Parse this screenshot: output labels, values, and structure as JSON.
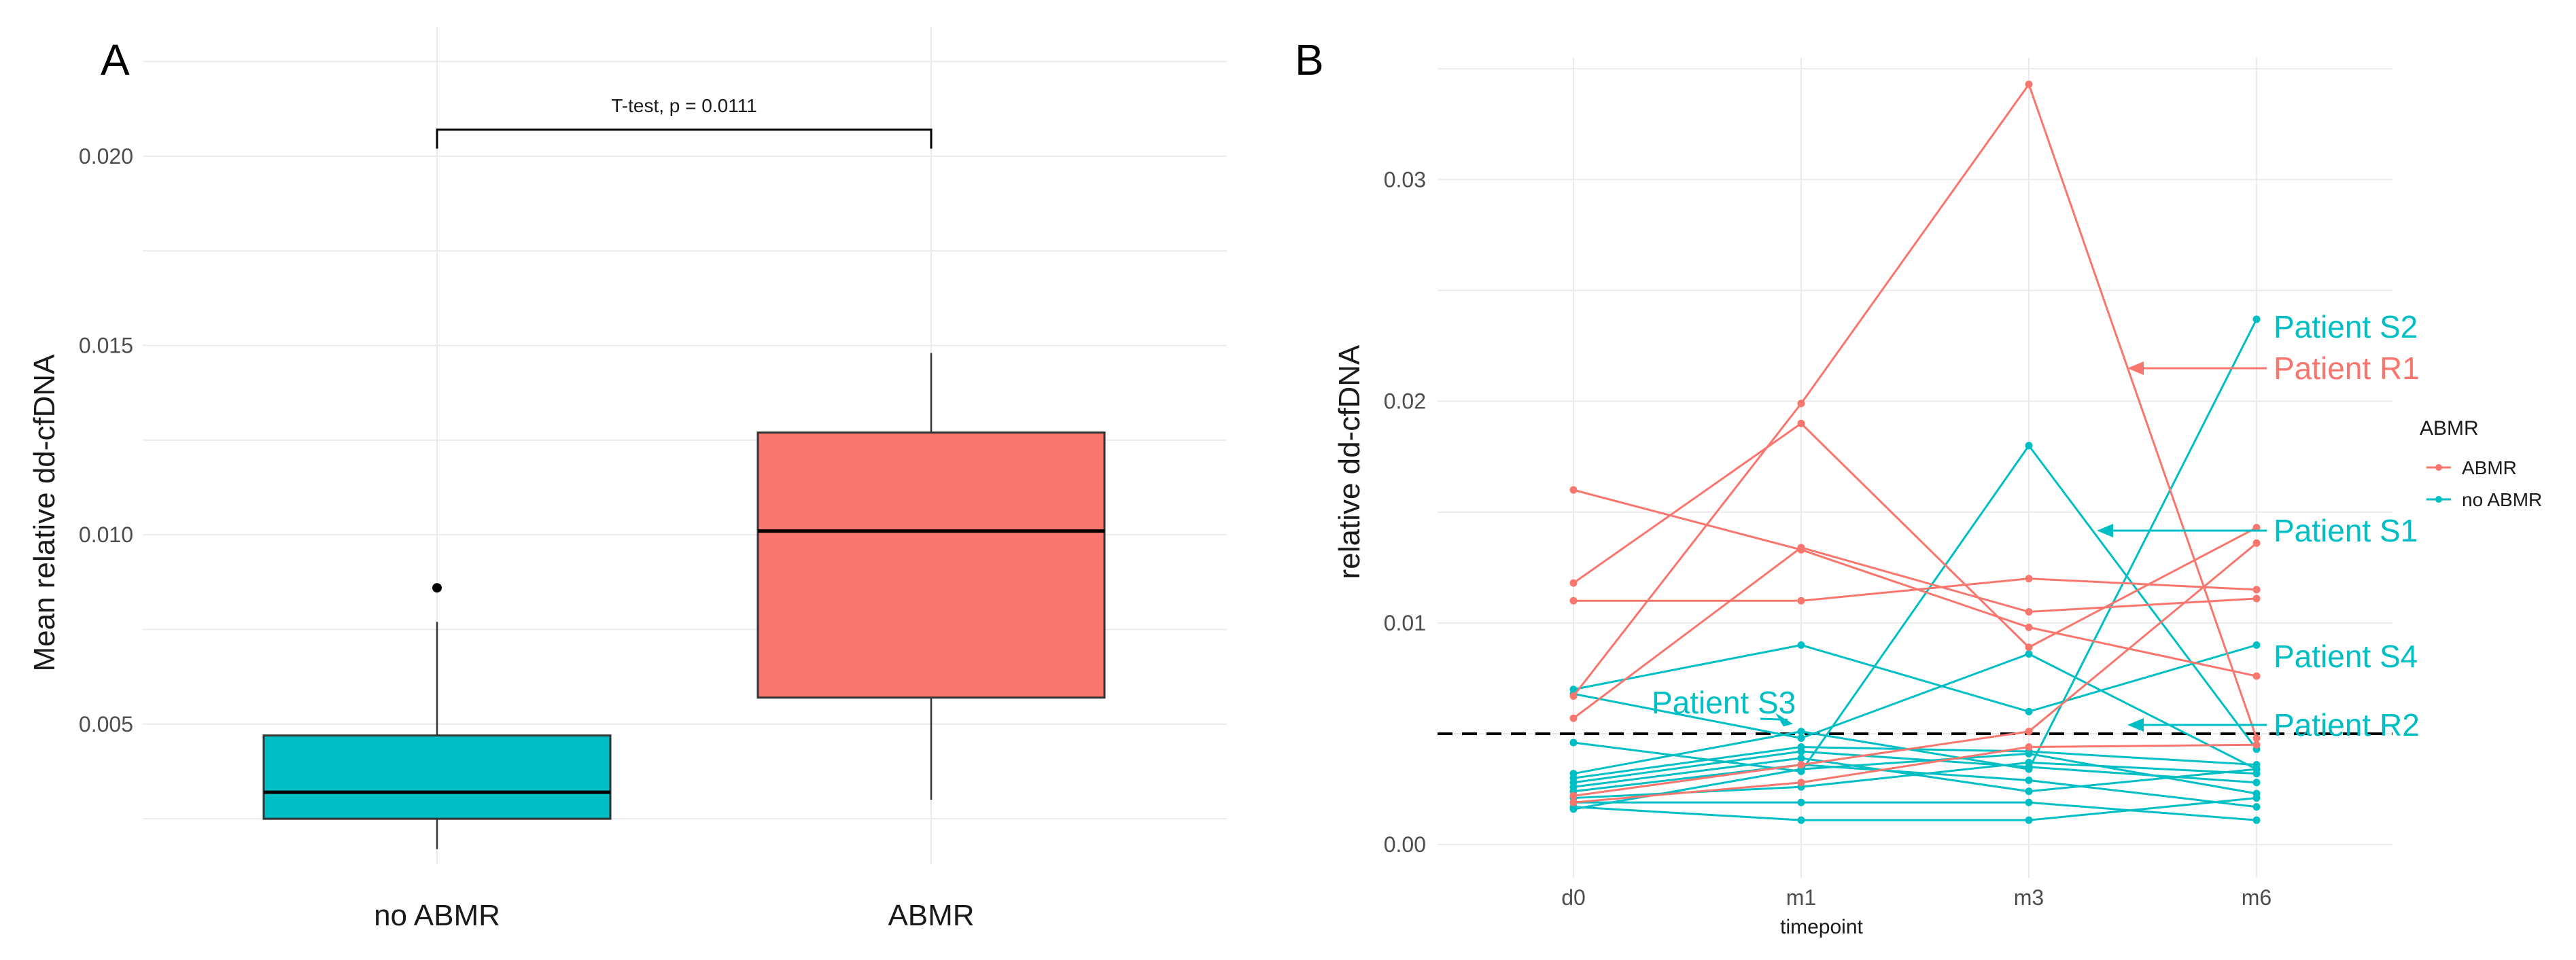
{
  "colors": {
    "abmr": "#F8766D",
    "no_abmr": "#00BFC4",
    "dark": "#000000"
  },
  "chart_data": [
    {
      "panel": "A",
      "type": "box",
      "ylabel": "Mean relative dd-cfDNA",
      "yticks": [
        0.005,
        0.01,
        0.015,
        0.02
      ],
      "ytick_labels": [
        "0.005",
        "0.010",
        "0.015",
        "0.020"
      ],
      "ylim": [
        0.0013,
        0.0226
      ],
      "categories": [
        "no ABMR",
        "ABMR"
      ],
      "boxes": [
        {
          "name": "no ABMR",
          "color": "#00BFC4",
          "whisker_low": 0.0017,
          "q1": 0.0025,
          "median": 0.0032,
          "q3": 0.0047,
          "whisker_high": 0.0077,
          "outliers": [
            0.0086
          ]
        },
        {
          "name": "ABMR",
          "color": "#F8766D",
          "whisker_low": 0.003,
          "q1": 0.0057,
          "median": 0.0101,
          "q3": 0.0127,
          "whisker_high": 0.0148,
          "outliers": []
        }
      ],
      "comparison": {
        "label": "T-test, p = 0.0111",
        "y": 0.0207,
        "tip_low": 0.0202
      }
    },
    {
      "panel": "B",
      "type": "line",
      "xlabel": "timepoint",
      "ylabel": "relative dd-cfDNA",
      "categories": [
        "d0",
        "m1",
        "m3",
        "m6"
      ],
      "yticks": [
        0,
        0.01,
        0.02,
        0.03
      ],
      "ytick_labels": [
        "0.00",
        "0.01",
        "0.02",
        "0.03"
      ],
      "ylim": [
        -0.0015,
        0.0355
      ],
      "threshold": 0.005,
      "legend": {
        "title": "ABMR",
        "position": "right",
        "entries": [
          {
            "name": "ABMR",
            "color": "#F8766D"
          },
          {
            "name": "no ABMR",
            "color": "#00BFC4"
          }
        ]
      },
      "series": [
        {
          "group": "ABMR",
          "values": [
            0.016,
            0.0133,
            0.0098,
            0.0076
          ]
        },
        {
          "group": "ABMR",
          "values": [
            0.0118,
            0.019,
            0.0089,
            0.0143
          ]
        },
        {
          "group": "ABMR",
          "values": [
            0.011,
            0.011,
            0.012,
            0.0115
          ]
        },
        {
          "group": "ABMR",
          "values": [
            0.0067,
            0.0199,
            0.0343,
            0.0048
          ]
        },
        {
          "group": "ABMR",
          "values": [
            0.0057,
            0.0134,
            0.0105,
            0.0111
          ]
        },
        {
          "group": "ABMR",
          "values": [
            0.0022,
            0.0036,
            0.0051,
            0.0136
          ]
        },
        {
          "group": "ABMR",
          "values": [
            0.0019,
            0.0028,
            0.0044,
            0.0045
          ]
        },
        {
          "group": "no ABMR",
          "values": [
            0.007,
            0.009,
            0.006,
            0.009
          ]
        },
        {
          "group": "no ABMR",
          "values": [
            0.0068,
            0.0048,
            0.0086,
            0.0034
          ]
        },
        {
          "group": "no ABMR",
          "values": [
            0.0046,
            0.0033,
            0.018,
            0.0043
          ]
        },
        {
          "group": "no ABMR",
          "values": [
            0.0032,
            0.0051,
            0.0034,
            0.0237
          ]
        },
        {
          "group": "no ABMR",
          "values": [
            0.003,
            0.0044,
            0.0042,
            0.0036
          ]
        },
        {
          "group": "no ABMR",
          "values": [
            0.0028,
            0.0042,
            0.0035,
            0.0028
          ]
        },
        {
          "group": "no ABMR",
          "values": [
            0.0026,
            0.0039,
            0.0024,
            0.0034
          ]
        },
        {
          "group": "no ABMR",
          "values": [
            0.0024,
            0.0036,
            0.0029,
            0.0017
          ]
        },
        {
          "group": "no ABMR",
          "values": [
            0.0021,
            0.0026,
            0.0037,
            0.0032
          ]
        },
        {
          "group": "no ABMR",
          "values": [
            0.0019,
            0.0019,
            0.0019,
            0.0011
          ]
        },
        {
          "group": "no ABMR",
          "values": [
            0.0017,
            0.0011,
            0.0011,
            0.0021
          ]
        },
        {
          "group": "no ABMR",
          "values": [
            0.0016,
            0.0034,
            0.0041,
            0.0023
          ]
        }
      ],
      "annotations": [
        {
          "label": "Patient S2",
          "color": "#00BFC4",
          "x": "m6",
          "y": 0.0237,
          "arrow": false
        },
        {
          "label": "Patient R1",
          "color": "#F8766D",
          "x": "m3",
          "y": 0.022,
          "arrow": true
        },
        {
          "label": "Patient S1",
          "color": "#00BFC4",
          "x": "m3",
          "y": 0.0148,
          "arrow": true
        },
        {
          "label": "Patient S4",
          "color": "#00BFC4",
          "x": "m6",
          "y": 0.009,
          "arrow": false
        },
        {
          "label": "Patient R2",
          "color": "#00BFC4",
          "x": "m3",
          "y": 0.0061,
          "arrow": true
        },
        {
          "label": "Patient S3",
          "color": "#00BFC4",
          "x": "m1",
          "y": 0.0052,
          "arrow": true
        }
      ]
    }
  ]
}
